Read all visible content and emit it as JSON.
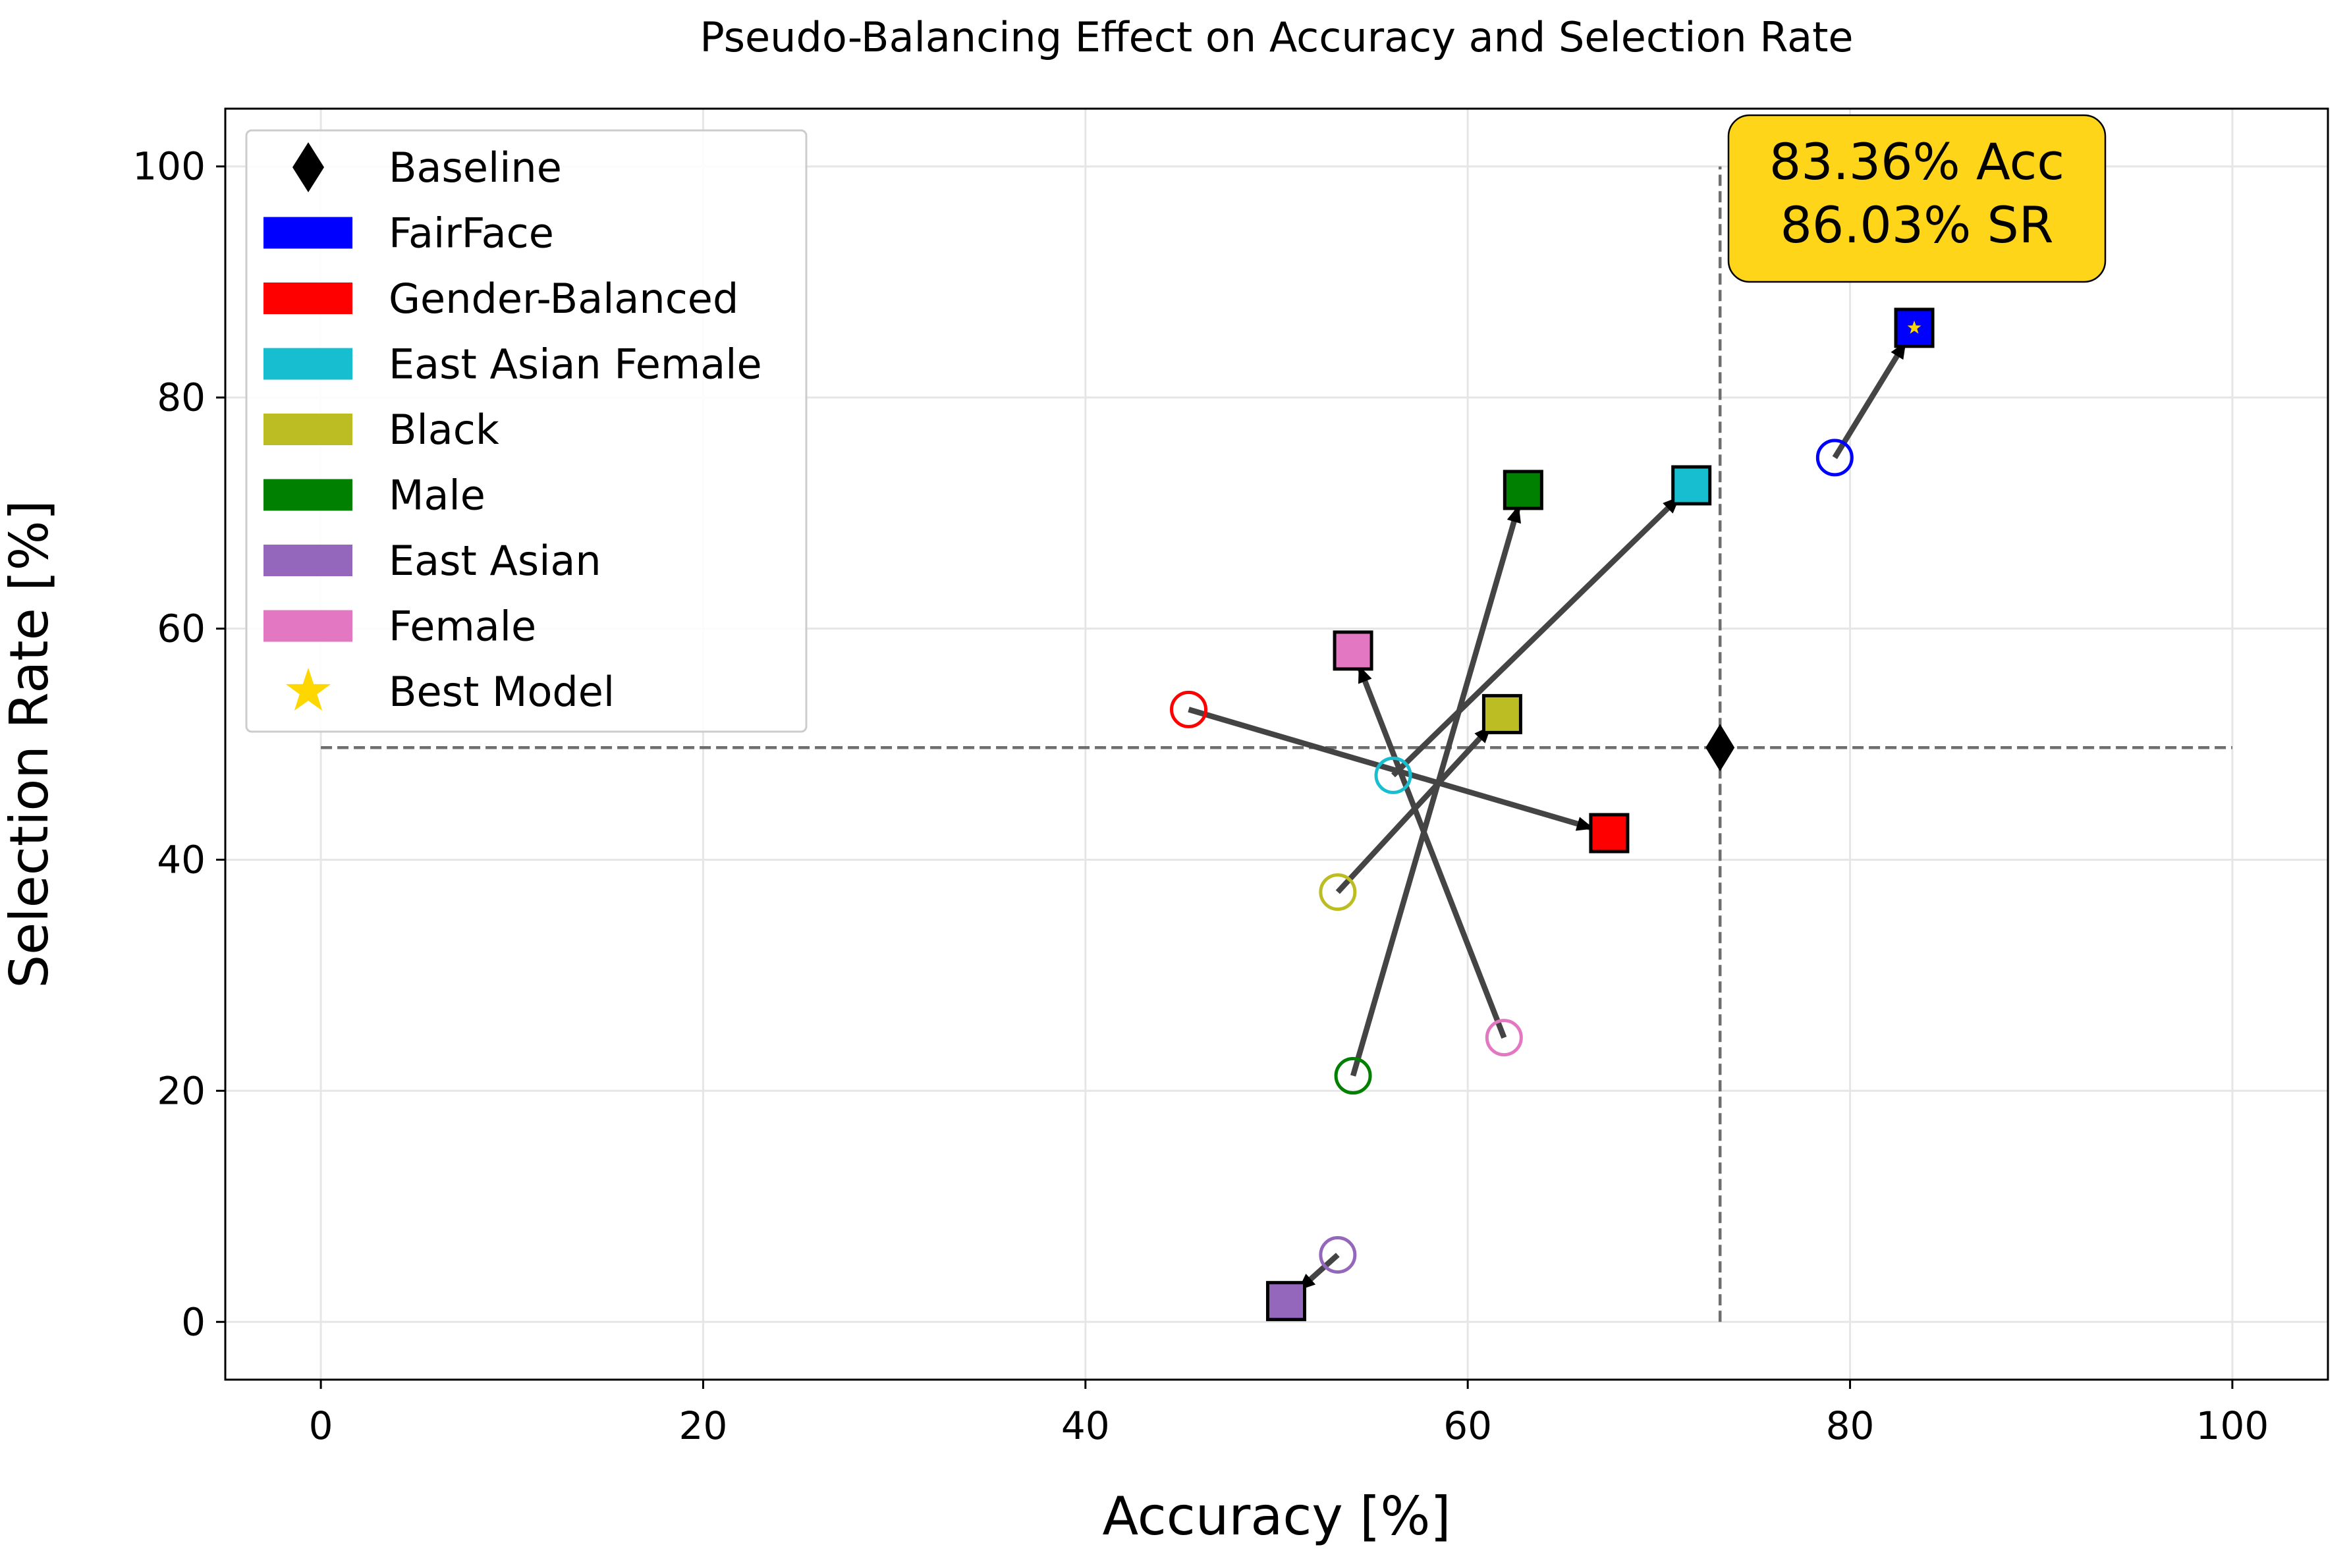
{
  "chart_data": {
    "type": "scatter",
    "title": "Pseudo-Balancing Effect on Accuracy and Selection Rate",
    "xlabel": "Accuracy [%]",
    "ylabel": "Selection Rate [%]",
    "xlim": [
      -5,
      105
    ],
    "ylim": [
      -5,
      105
    ],
    "x_ticks": [
      0,
      20,
      40,
      60,
      80,
      100
    ],
    "y_ticks": [
      0,
      20,
      40,
      60,
      80,
      100
    ],
    "grid": true,
    "legend_position": "top-left",
    "baseline": {
      "name": "Baseline",
      "x": 73.2,
      "y": 49.7,
      "color": "#000000"
    },
    "series": [
      {
        "name": "FairFace",
        "color": "#0000ff",
        "before": {
          "x": 79.2,
          "y": 74.8
        },
        "after": {
          "x": 83.36,
          "y": 86.03
        }
      },
      {
        "name": "Gender-Balanced",
        "color": "#ff0000",
        "before": {
          "x": 45.4,
          "y": 53.0
        },
        "after": {
          "x": 67.4,
          "y": 42.3
        }
      },
      {
        "name": "East Asian Female",
        "color": "#17becf",
        "before": {
          "x": 56.1,
          "y": 47.3
        },
        "after": {
          "x": 71.7,
          "y": 72.4
        }
      },
      {
        "name": "Black",
        "color": "#bcbd22",
        "before": {
          "x": 53.2,
          "y": 37.2
        },
        "after": {
          "x": 61.8,
          "y": 52.6
        }
      },
      {
        "name": "Male",
        "color": "#008000",
        "before": {
          "x": 54.0,
          "y": 21.3
        },
        "after": {
          "x": 62.9,
          "y": 72.0
        }
      },
      {
        "name": "East Asian",
        "color": "#9467bd",
        "before": {
          "x": 53.2,
          "y": 5.8
        },
        "after": {
          "x": 50.5,
          "y": 1.8
        }
      },
      {
        "name": "Female",
        "color": "#e377c2",
        "before": {
          "x": 61.9,
          "y": 24.6
        },
        "after": {
          "x": 54.0,
          "y": 58.1
        }
      }
    ],
    "best_model": {
      "name": "Best Model",
      "series": "FairFace",
      "x": 83.36,
      "y": 86.03,
      "color": "#ffd700"
    },
    "callout": {
      "line1": "83.36% Acc",
      "line2": "86.03% SR",
      "color": "#ffd51a"
    }
  }
}
